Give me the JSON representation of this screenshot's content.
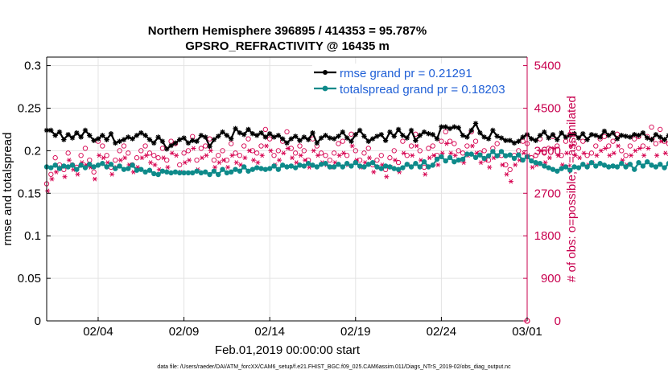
{
  "chart_data": {
    "type": "line",
    "title": "Northern Hemisphere 396895 / 414353 = 95.787%",
    "subtitle": "GPSRO_REFRACTIVITY @ 16435 m",
    "xlabel": "Feb.01,2019 00:00:00 start",
    "ylabel": "rmse and totalspread",
    "y2label": "# of obs: o=possible; *=assimilated",
    "xlim": [
      0,
      28
    ],
    "ylim": [
      0,
      0.31
    ],
    "y2lim": [
      0,
      5580
    ],
    "x_ticks": [
      {
        "value": 3,
        "label": "02/04"
      },
      {
        "value": 8,
        "label": "02/09"
      },
      {
        "value": 13,
        "label": "02/14"
      },
      {
        "value": 18,
        "label": "02/19"
      },
      {
        "value": 23,
        "label": "02/24"
      },
      {
        "value": 28,
        "label": "03/01"
      }
    ],
    "y_ticks": [
      "0",
      "0.05",
      "0.1",
      "0.15",
      "0.2",
      "0.25",
      "0.3"
    ],
    "y_tick_values": [
      0,
      0.05,
      0.1,
      0.15,
      0.2,
      0.25,
      0.3
    ],
    "y2_ticks": [
      "0",
      "900",
      "1800",
      "2700",
      "3600",
      "4500",
      "5400"
    ],
    "y2_tick_values": [
      0,
      900,
      1800,
      2700,
      3600,
      4500,
      5400
    ],
    "grid": true,
    "legend_position": "top-right",
    "x_step": 0.25,
    "series": [
      {
        "name": "rmse grand pr = 0.21291",
        "axis": "left",
        "color": "#000000",
        "marker": "asterisk-dot",
        "values": [
          0.224,
          0.224,
          0.218,
          0.222,
          0.213,
          0.219,
          0.215,
          0.221,
          0.216,
          0.224,
          0.218,
          0.212,
          0.214,
          0.218,
          0.213,
          0.22,
          0.209,
          0.211,
          0.213,
          0.216,
          0.214,
          0.218,
          0.221,
          0.218,
          0.213,
          0.209,
          0.216,
          0.211,
          0.202,
          0.206,
          0.209,
          0.213,
          0.215,
          0.209,
          0.212,
          0.211,
          0.218,
          0.216,
          0.205,
          0.213,
          0.217,
          0.222,
          0.218,
          0.214,
          0.226,
          0.221,
          0.219,
          0.225,
          0.22,
          0.218,
          0.221,
          0.216,
          0.22,
          0.216,
          0.218,
          0.214,
          0.209,
          0.214,
          0.217,
          0.212,
          0.216,
          0.213,
          0.221,
          0.209,
          0.215,
          0.218,
          0.215,
          0.214,
          0.217,
          0.222,
          0.215,
          0.211,
          0.219,
          0.224,
          0.217,
          0.211,
          0.214,
          0.217,
          0.219,
          0.212,
          0.222,
          0.217,
          0.225,
          0.218,
          0.215,
          0.224,
          0.212,
          0.218,
          0.222,
          0.22,
          0.219,
          0.214,
          0.228,
          0.228,
          0.226,
          0.228,
          0.227,
          0.218,
          0.216,
          0.224,
          0.232,
          0.221,
          0.216,
          0.214,
          0.224,
          0.217,
          0.215,
          0.212,
          0.212,
          0.209,
          0.211,
          0.216,
          0.219,
          0.214,
          0.212,
          0.218,
          0.222,
          0.215,
          0.219,
          0.213,
          0.221,
          0.216,
          0.218,
          0.22,
          0.215,
          0.22,
          0.213,
          0.219,
          0.218,
          0.216,
          0.223,
          0.218,
          0.221,
          0.214,
          0.218,
          0.217,
          0.216,
          0.219,
          0.218,
          0.221,
          0.215,
          0.213,
          0.219,
          0.216,
          0.213,
          0.218,
          0.215,
          0.222,
          0.219,
          0.212,
          0.216,
          0.21,
          0.218,
          0.219,
          0.221,
          0.225,
          0.218,
          0.213,
          0.214,
          0.216,
          0.218,
          0.213,
          0.216,
          0.21,
          0.212,
          0.216,
          0.213,
          0.211,
          0.213,
          0.216,
          0.214,
          0.218,
          0.221,
          0.212,
          0.215,
          0.219,
          0.216,
          0.211,
          0.218,
          0.22,
          0.218,
          0.221,
          0.213,
          0.216,
          0.217,
          0.222,
          0.213,
          0.216,
          0.221,
          0.223,
          0.214,
          0.218,
          0.22,
          0.217,
          0.222,
          0.215,
          0.219,
          0.221,
          0.212,
          0.218,
          0.222,
          0.228,
          0.22,
          0.224,
          0.218,
          0.22,
          0.218,
          0.215,
          0.222,
          0.219,
          0.218,
          0.223,
          0.216,
          0.22,
          0.225,
          0.22,
          0.218,
          0.222,
          0.221,
          0.219,
          0.226,
          0.218,
          0.224,
          0.226,
          0.222,
          0.218
        ]
      },
      {
        "name": "totalspread grand pr = 0.18203",
        "axis": "left",
        "color": "#0e8a8a",
        "marker": "dot",
        "values": [
          0.181,
          0.18,
          0.183,
          0.179,
          0.182,
          0.181,
          0.183,
          0.178,
          0.183,
          0.18,
          0.184,
          0.181,
          0.183,
          0.185,
          0.181,
          0.184,
          0.179,
          0.182,
          0.178,
          0.179,
          0.183,
          0.177,
          0.178,
          0.175,
          0.177,
          0.173,
          0.172,
          0.176,
          0.175,
          0.174,
          0.175,
          0.174,
          0.174,
          0.174,
          0.174,
          0.176,
          0.174,
          0.175,
          0.172,
          0.176,
          0.172,
          0.178,
          0.174,
          0.175,
          0.178,
          0.176,
          0.181,
          0.176,
          0.178,
          0.18,
          0.179,
          0.178,
          0.179,
          0.182,
          0.178,
          0.183,
          0.181,
          0.182,
          0.18,
          0.183,
          0.182,
          0.185,
          0.183,
          0.181,
          0.184,
          0.185,
          0.181,
          0.181,
          0.184,
          0.181,
          0.185,
          0.182,
          0.186,
          0.182,
          0.181,
          0.184,
          0.186,
          0.181,
          0.179,
          0.182,
          0.181,
          0.179,
          0.178,
          0.18,
          0.184,
          0.181,
          0.185,
          0.181,
          0.187,
          0.181,
          0.183,
          0.19,
          0.193,
          0.188,
          0.192,
          0.187,
          0.189,
          0.19,
          0.196,
          0.196,
          0.192,
          0.195,
          0.191,
          0.194,
          0.199,
          0.194,
          0.199,
          0.194,
          0.195,
          0.191,
          0.195,
          0.189,
          0.193,
          0.188,
          0.186,
          0.185,
          0.182,
          0.18,
          0.178,
          0.176,
          0.179,
          0.181,
          0.177,
          0.181,
          0.18,
          0.184,
          0.181,
          0.186,
          0.182,
          0.185,
          0.183,
          0.181,
          0.182,
          0.181,
          0.185,
          0.181,
          0.184,
          0.178,
          0.186,
          0.182,
          0.187,
          0.183,
          0.181,
          0.184,
          0.18,
          0.185,
          0.186,
          0.182,
          0.177,
          0.181,
          0.178,
          0.182,
          0.176,
          0.18,
          0.177,
          0.181,
          0.176,
          0.179,
          0.178,
          0.182,
          0.179,
          0.183,
          0.18,
          0.185,
          0.182,
          0.187,
          0.184,
          0.189,
          0.186,
          0.19,
          0.185,
          0.188,
          0.184,
          0.186,
          0.183,
          0.187,
          0.185,
          0.186,
          0.184,
          0.189,
          0.187,
          0.19,
          0.186,
          0.189,
          0.187,
          0.19,
          0.188,
          0.186,
          0.183,
          0.188,
          0.183,
          0.187,
          0.184,
          0.188,
          0.185,
          0.189,
          0.186,
          0.183,
          0.186,
          0.184,
          0.188,
          0.183,
          0.185,
          0.182,
          0.186,
          0.184,
          0.187,
          0.183,
          0.188,
          0.185,
          0.189,
          0.186,
          0.19,
          0.187,
          0.191,
          0.186,
          0.189,
          0.187,
          0.189,
          0.186,
          0.19,
          0.188,
          0.182,
          0.188,
          0.183,
          0.182
        ]
      },
      {
        "name": "possible",
        "axis": "right",
        "color": "#d6004f",
        "marker": "circle-open",
        "values": [
          2900,
          3100,
          3450,
          3300,
          3200,
          3550,
          3300,
          3250,
          3500,
          3650,
          3400,
          3150,
          3800,
          3700,
          3500,
          3250,
          3400,
          3600,
          3700,
          3550,
          3300,
          3450,
          3600,
          3700,
          3550,
          3500,
          3450,
          3650,
          3400,
          3800,
          3750,
          3300,
          3550,
          3600,
          3900,
          3400,
          3650,
          3700,
          3850,
          3400,
          3500,
          3600,
          3400,
          3750,
          3550,
          3500,
          3700,
          3850,
          3600,
          3550,
          3700,
          4050,
          3850,
          3500,
          3600,
          3800,
          4000,
          3650,
          3550,
          3700,
          3600,
          3400,
          3850,
          3700,
          3550,
          3500,
          3400,
          3550,
          3750,
          3800,
          3500,
          3950,
          3600,
          3400,
          3550,
          3650,
          3300,
          3400,
          3500,
          3200,
          3450,
          3600,
          3350,
          3800,
          3500,
          3700,
          3950,
          3600,
          3250,
          3650,
          3700,
          3500,
          3800,
          4000,
          3800,
          3750,
          3600,
          3550,
          3700,
          4000,
          3800,
          3550,
          3600,
          3400,
          3650,
          3750,
          3500,
          3300,
          3200,
          3500,
          3600,
          3800,
          3750,
          3450,
          3500,
          3850,
          3550,
          3650,
          3900,
          3700,
          3500,
          3800,
          3950,
          3750,
          3650,
          3800,
          3500,
          3550,
          3700,
          3850,
          3900,
          3700,
          3800,
          3950,
          3600,
          3500,
          3700,
          3850,
          3900,
          3700,
          3900,
          4100,
          3750,
          4050,
          3800,
          3750,
          4000,
          3900,
          3850,
          3800,
          3550,
          4000,
          3800,
          3650,
          3950,
          3700,
          3850,
          4000,
          3750,
          3800,
          3950,
          3700,
          3800,
          3850,
          3600,
          3700,
          3800,
          3950,
          3700,
          3750,
          3900,
          3700,
          3600,
          3750,
          3650,
          3600,
          3850,
          3950,
          3650,
          3700,
          3800,
          3750,
          3600,
          4050,
          3800,
          3600,
          4100,
          3900,
          3750,
          3850,
          3650,
          3800,
          3950,
          3750,
          3700,
          3750,
          3900,
          4100,
          3800,
          3650,
          3600,
          3800,
          3950,
          3750,
          3500,
          3650,
          3850,
          4000,
          3650,
          3750,
          3900,
          3850,
          3750,
          3950,
          4000,
          3800,
          3700,
          3900,
          4000,
          4150,
          3800,
          3650,
          3900,
          4250,
          4500,
          3850,
          4750,
          4400,
          4200,
          4800,
          4700,
          3700,
          3900,
          3800
        ]
      },
      {
        "name": "assimilated",
        "axis": "right",
        "color": "#d6004f",
        "marker": "asterisk",
        "values": [
          2750,
          3000,
          3150,
          3250,
          3050,
          3400,
          3200,
          3100,
          3350,
          3300,
          3250,
          3000,
          3500,
          3450,
          3350,
          3100,
          3250,
          3400,
          3450,
          3300,
          3150,
          3250,
          3450,
          3500,
          3350,
          3300,
          3200,
          3450,
          3250,
          3550,
          3500,
          3150,
          3350,
          3400,
          3650,
          3200,
          3450,
          3500,
          3600,
          3250,
          3350,
          3400,
          3250,
          3500,
          3350,
          3300,
          3450,
          3600,
          3400,
          3350,
          3500,
          3700,
          3600,
          3300,
          3400,
          3550,
          3650,
          3450,
          3350,
          3500,
          3400,
          3250,
          3600,
          3500,
          3350,
          3300,
          3250,
          3350,
          3500,
          3550,
          3300,
          3700,
          3400,
          3250,
          3350,
          3450,
          3150,
          3250,
          3300,
          3050,
          3250,
          3400,
          3150,
          3550,
          3300,
          3500,
          3700,
          3400,
          3100,
          3450,
          3500,
          3300,
          3550,
          3750,
          3550,
          3500,
          3400,
          3350,
          3500,
          3700,
          3550,
          3350,
          3400,
          3250,
          3450,
          3500,
          3300,
          3100,
          2950,
          3300,
          3400,
          3550,
          3500,
          3250,
          3300,
          3600,
          3350,
          3450,
          3650,
          3500,
          3300,
          3550,
          3700,
          3500,
          3450,
          3550,
          3300,
          3350,
          3500,
          3600,
          3650,
          3500,
          3550,
          3700,
          3400,
          3300,
          3500,
          3600,
          3650,
          3500,
          3650,
          3850,
          3500,
          3800,
          3550,
          3500,
          3750,
          3650,
          3600,
          3550,
          3350,
          3750,
          3550,
          3450,
          3700,
          3500,
          3600,
          3750,
          3500,
          3550,
          3700,
          3500,
          3550,
          3600,
          3400,
          3500,
          3550,
          3700,
          3500,
          3500,
          3650,
          3500,
          3400,
          3500,
          3450,
          3400,
          3600,
          3700,
          3450,
          3500,
          3550,
          3500,
          3400,
          3800,
          3550,
          3400,
          3850,
          3650,
          3500,
          3600,
          3450,
          3550,
          3700,
          3500,
          3500,
          3500,
          3650,
          3850,
          3550,
          3450,
          3400,
          3550,
          3700,
          3500,
          3300,
          3450,
          3600,
          3750,
          3450,
          3500,
          3650,
          3600,
          3500,
          3700,
          3750,
          3550,
          3500,
          3650,
          3750,
          3900,
          3550,
          3450,
          3650,
          3950,
          4150,
          3600,
          4400,
          4100,
          3950,
          4450,
          4350,
          3500,
          3650,
          3550
        ]
      }
    ],
    "legend": [
      {
        "label": "rmse grand pr = 0.21291",
        "color": "#000000"
      },
      {
        "label": "totalspread grand pr = 0.18203",
        "color": "#0e8a8a"
      }
    ],
    "last_point_marker": {
      "axis": "right",
      "x": 28,
      "y": 0,
      "label": "possible"
    }
  },
  "footer": {
    "data_file": "data file: /Users/raeder/DAI/ATM_forcXX/CAM6_setup/f.e21.FHIST_BGC.f09_025.CAM6assim.011/Diags_NTrS_2019-02/obs_diag_output.nc"
  },
  "colors": {
    "grid": "#e3e3e3",
    "right_axis": "#c8004e",
    "legend_text": "#1f5fd6"
  }
}
